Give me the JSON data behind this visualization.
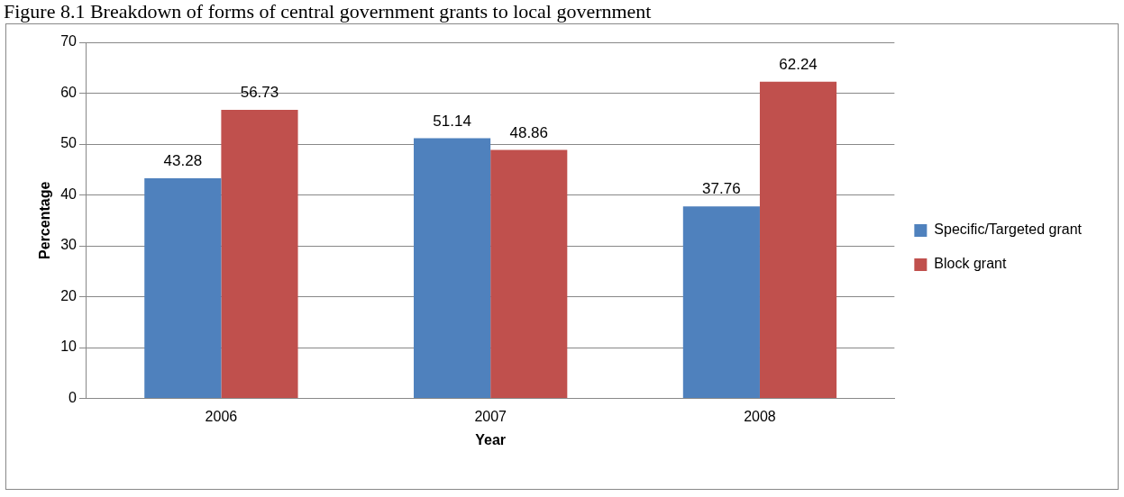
{
  "chart_data": {
    "type": "bar",
    "title": "Figure 8.1 Breakdown of forms of central government grants to local government",
    "xlabel": "Year",
    "ylabel": "Percentage",
    "categories": [
      "2006",
      "2007",
      "2008"
    ],
    "series": [
      {
        "name": "Specific/Targeted grant",
        "color": "#4f81bd",
        "values": [
          43.28,
          51.14,
          37.76
        ]
      },
      {
        "name": "Block grant",
        "color": "#c0504d",
        "values": [
          56.73,
          48.86,
          62.24
        ]
      }
    ],
    "ylim": [
      0,
      70
    ],
    "yticks": [
      0,
      10,
      20,
      30,
      40,
      50,
      60,
      70
    ],
    "grid": "y",
    "legend": "right",
    "data_labels": true
  }
}
